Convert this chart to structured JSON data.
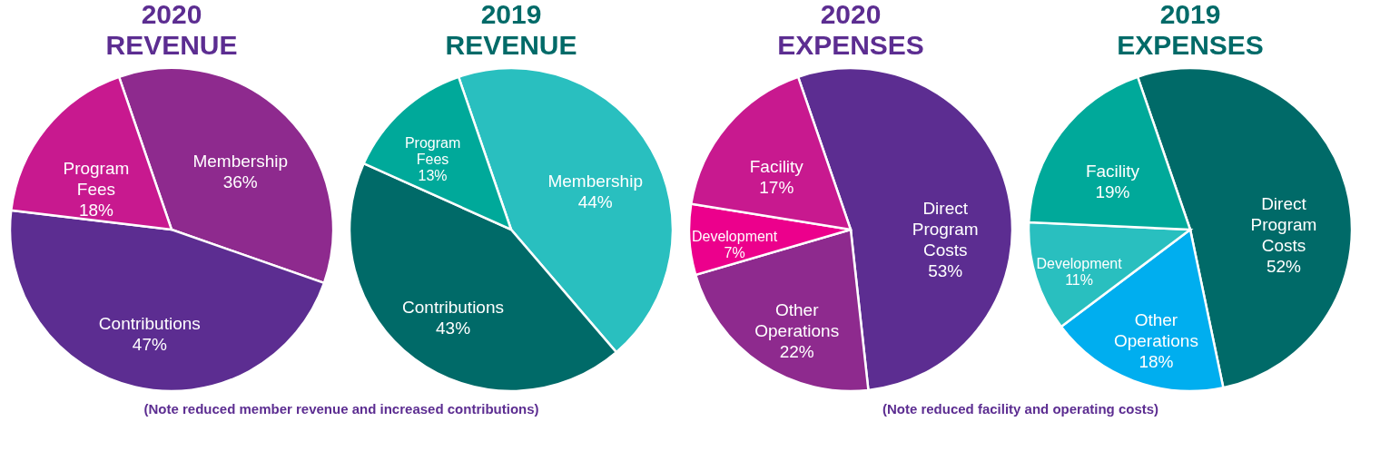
{
  "chart_data": [
    {
      "type": "pie",
      "title": "2020 REVENUE",
      "categories": [
        "Membership",
        "Contributions",
        "Program Fees"
      ],
      "values": [
        36,
        47,
        18
      ],
      "value_labels": [
        "36%",
        "47%",
        "18%"
      ],
      "colors": [
        "#8e2a8e",
        "#5c2d91",
        "#c8198f"
      ],
      "legend": false,
      "annotations": [
        "(Note reduced member revenue and increased contributions)"
      ]
    },
    {
      "type": "pie",
      "title": "2019 REVENUE",
      "categories": [
        "Membership",
        "Contributions",
        "Program Fees"
      ],
      "values": [
        44,
        43,
        13
      ],
      "value_labels": [
        "44%",
        "43%",
        "13%"
      ],
      "colors": [
        "#29bfbf",
        "#006a68",
        "#00a99a"
      ],
      "legend": false
    },
    {
      "type": "pie",
      "title": "2020 EXPENSES",
      "categories": [
        "Direct Program Costs",
        "Other Operations",
        "Development",
        "Facility"
      ],
      "values": [
        53,
        22,
        7,
        17
      ],
      "value_labels": [
        "53%",
        "22%",
        "7%",
        "17%"
      ],
      "colors": [
        "#5c2d91",
        "#8e2a8e",
        "#ec008c",
        "#c8198f"
      ],
      "legend": false,
      "annotations": [
        "(Note reduced facility and operating costs)"
      ]
    },
    {
      "type": "pie",
      "title": "2019 EXPENSES",
      "categories": [
        "Direct Program Costs",
        "Other Operations",
        "Development",
        "Facility"
      ],
      "values": [
        52,
        18,
        11,
        19
      ],
      "value_labels": [
        "52%",
        "18%",
        "11%",
        "19%"
      ],
      "colors": [
        "#006a68",
        "#00aeef",
        "#29bfbf",
        "#00a99a"
      ],
      "legend": false
    }
  ]
}
